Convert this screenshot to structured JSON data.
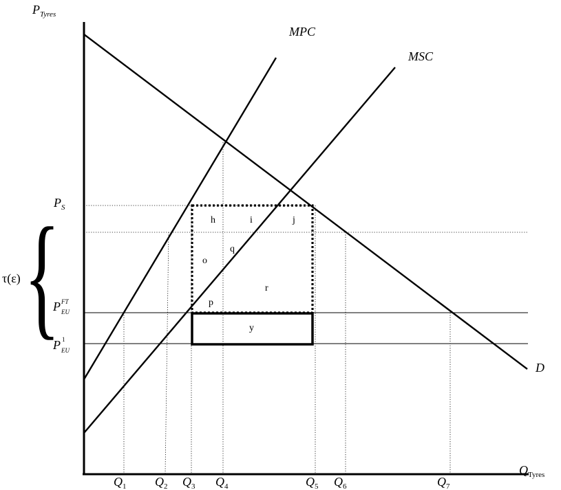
{
  "axes": {
    "y_label": "P",
    "y_label_sub": "Tyres",
    "x_label": "Q",
    "x_label_sub": "Tyres"
  },
  "curves": {
    "mpc": "MPC",
    "msc": "MSC",
    "demand": "D"
  },
  "price_labels": {
    "ps_main": "P",
    "ps_sub": "S",
    "eu_ft_main": "P",
    "eu_ft_sub": "EU",
    "eu_ft_sup": "FT",
    "eu1_main": "P",
    "eu1_sub": "EU",
    "eu1_sup": "1",
    "tau": "τ(ε)",
    "brace": "{"
  },
  "quantity_labels": [
    {
      "main": "Q",
      "sub": "1"
    },
    {
      "main": "Q",
      "sub": "2"
    },
    {
      "main": "Q",
      "sub": "3"
    },
    {
      "main": "Q",
      "sub": "4"
    },
    {
      "main": "Q",
      "sub": "5"
    },
    {
      "main": "Q",
      "sub": "6"
    },
    {
      "main": "Q",
      "sub": "7"
    }
  ],
  "areas": {
    "h": "h",
    "i": "i",
    "j": "j",
    "o": "o",
    "q": "q",
    "r": "r",
    "p": "p",
    "y": "y"
  }
}
